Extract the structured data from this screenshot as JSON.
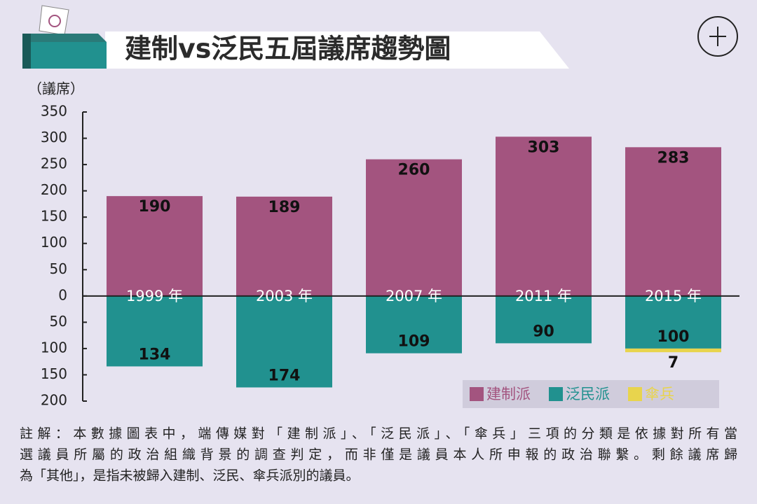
{
  "chart_data": {
    "type": "bar",
    "title": "建制vs泛民五屆議席趨勢圖",
    "y_label": "（議席）",
    "categories": [
      "1999 年",
      "2003 年",
      "2007 年",
      "2011 年",
      "2015 年"
    ],
    "series": [
      {
        "name": "建制派",
        "color": "#a3547f",
        "values": [
          190,
          189,
          260,
          303,
          283
        ]
      },
      {
        "name": "泛民派",
        "color": "#21918f",
        "values": [
          -134,
          -174,
          -109,
          -90,
          -100
        ],
        "value_labels": [
          "134",
          "174",
          "109",
          "90",
          "100"
        ]
      },
      {
        "name": "傘兵",
        "color": "#e8d44d",
        "values": [
          null,
          null,
          null,
          null,
          -7
        ],
        "value_labels": [
          null,
          null,
          null,
          null,
          "7"
        ]
      }
    ],
    "stacked": true,
    "ylim": [
      -200,
      350
    ],
    "yticks": [
      {
        "value": -200,
        "label": "200"
      },
      {
        "value": -150,
        "label": "150"
      },
      {
        "value": -100,
        "label": "100"
      },
      {
        "value": -50,
        "label": "50"
      },
      0,
      50,
      100,
      150,
      200,
      250,
      300,
      350
    ],
    "legend": "bottom-right",
    "note": [
      "註解：本數據圖表中，端傳媒對「建制派」、「泛民派」、「傘兵」三項的分類是依據對所有當",
      "選議員所屬的政治組織背景的調查判定，而非僅是議員本人所申報的政治聯繫。剩餘議席歸",
      "為「其他」，是指未被歸入建制、泛民、傘兵派別的議員。"
    ]
  }
}
